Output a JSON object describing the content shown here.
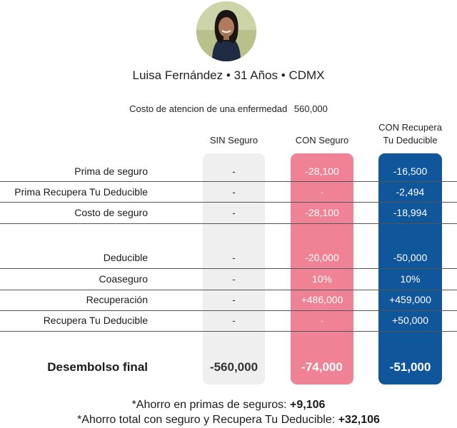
{
  "profile": {
    "name": "Luisa Fernández",
    "age": "31 Años",
    "city": "CDMX",
    "separator": "•"
  },
  "cost": {
    "label": "Costo de atencion de una enfermedad",
    "value": "560,000"
  },
  "columns": {
    "sin": "SIN Seguro",
    "con": "CON Seguro",
    "rec_line1": "CON Recupera",
    "rec_line2": "Tu Deducible"
  },
  "rows": [
    {
      "label": "Prima de seguro",
      "sin": "-",
      "con": "-28,100",
      "rec": "-16,500"
    },
    {
      "label": "Prima Recupera Tu Deducible",
      "sin": "-",
      "con": "-",
      "rec": "-2,494"
    },
    {
      "label": "Costo de seguro",
      "sin": "-",
      "con": "-28,100",
      "rec": "-18,994"
    },
    {
      "label": "Deducible",
      "sin": "-",
      "con": "-20,000",
      "rec": "-50,000"
    },
    {
      "label": "Coaseguro",
      "sin": "-",
      "con": "10%",
      "rec": "10%"
    },
    {
      "label": "Recuperación",
      "sin": "-",
      "con": "+486,000",
      "rec": "+459,000"
    },
    {
      "label": "Recupera Tu Deducible",
      "sin": "-",
      "con": "-",
      "rec": "+50,000"
    }
  ],
  "final": {
    "label": "Desembolso final",
    "sin": "-560,000",
    "con": "-74,000",
    "rec": "-51,000"
  },
  "notes": {
    "primas_label": "*Ahorro en primas de seguros:",
    "primas_value": "+9,106",
    "total_label": "*Ahorro total con seguro y Recupera Tu Deducible:",
    "total_value": "+32,106"
  },
  "colors": {
    "sin_column": "#efefef",
    "con_column": "#f08295",
    "rec_column": "#0f569b"
  }
}
